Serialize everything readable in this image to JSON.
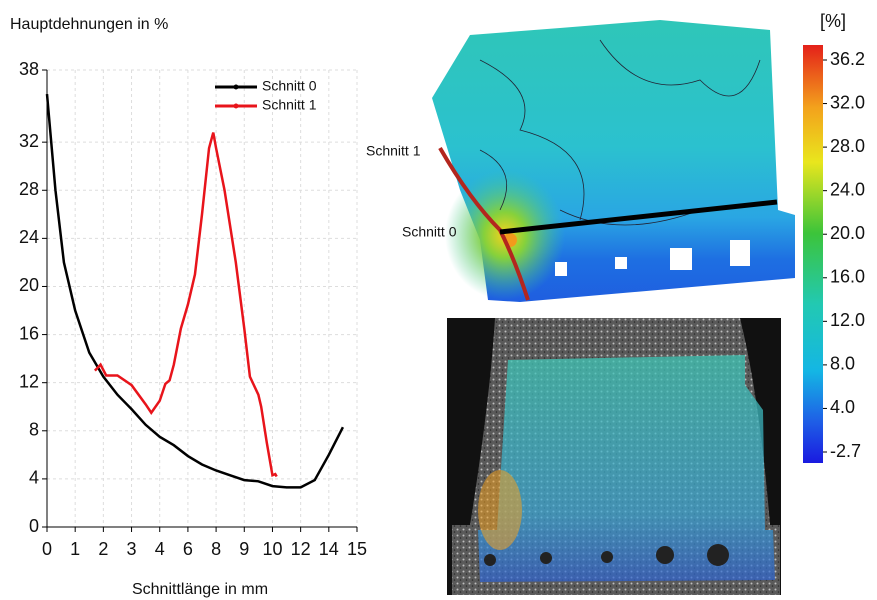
{
  "chart_data": {
    "type": "line",
    "ylabel": "Hauptdehnungen in %",
    "xlabel": "Schnittlänge in mm",
    "xlim": [
      0,
      15
    ],
    "xticks": [
      0,
      1,
      2,
      3,
      4,
      6,
      8,
      9,
      10,
      12,
      14,
      15
    ],
    "ylim": [
      0,
      38
    ],
    "yticks": [
      0,
      4,
      8,
      12,
      16,
      20,
      24,
      28,
      32,
      38
    ],
    "grid": true,
    "legend": "upper right",
    "series": [
      {
        "name": "Schnitt 0",
        "color": "#000000",
        "x": [
          0,
          0.3,
          0.6,
          1,
          1.5,
          2,
          2.5,
          3,
          3.5,
          4,
          5,
          6,
          7,
          8,
          8.5,
          9,
          9.5,
          10,
          11,
          12,
          13,
          14,
          14.5
        ],
        "values": [
          36,
          28,
          22,
          18,
          14.5,
          12.5,
          11,
          9.8,
          8.5,
          7.5,
          6.8,
          5.9,
          5.2,
          4.7,
          4.3,
          3.9,
          3.8,
          3.4,
          3.3,
          3.3,
          3.9,
          6,
          8.3
        ]
      },
      {
        "name": "Schnitt 1",
        "color": "#e8141b",
        "x": [
          1.7,
          1.9,
          2.1,
          2.5,
          3,
          3.5,
          3.7,
          4,
          4.4,
          4.7,
          5,
          5.5,
          6,
          6.5,
          7,
          7.5,
          7.8,
          8,
          8.3,
          8.7,
          9,
          9.2,
          9.5,
          9.6,
          9.8,
          10,
          10.2,
          10.3
        ],
        "values": [
          13,
          13.5,
          12.6,
          12.6,
          11.8,
          10.2,
          9.5,
          10.5,
          11.9,
          12.2,
          13.5,
          16.5,
          18.5,
          21,
          26,
          31.5,
          32.8,
          31.5,
          28,
          22,
          16.5,
          12.5,
          11,
          10,
          7,
          4.3,
          4.4,
          4.2
        ]
      }
    ]
  },
  "image_annotations": {
    "section_1": "Schnitt 1",
    "section_0": "Schnitt 0"
  },
  "colorbar": {
    "unit": "[%]",
    "ticks": [
      36.2,
      {
        "value": 32,
        "label": "32.0"
      },
      {
        "value": 28,
        "label": "28.0"
      },
      {
        "value": 24,
        "label": "24.0"
      },
      {
        "value": 20,
        "label": "20.0"
      },
      {
        "value": 16,
        "label": "16.0"
      },
      {
        "value": 12,
        "label": "12.0"
      },
      {
        "value": 8,
        "label": "8.0"
      },
      {
        "value": 4,
        "label": "4.0"
      },
      -2.7
    ]
  }
}
